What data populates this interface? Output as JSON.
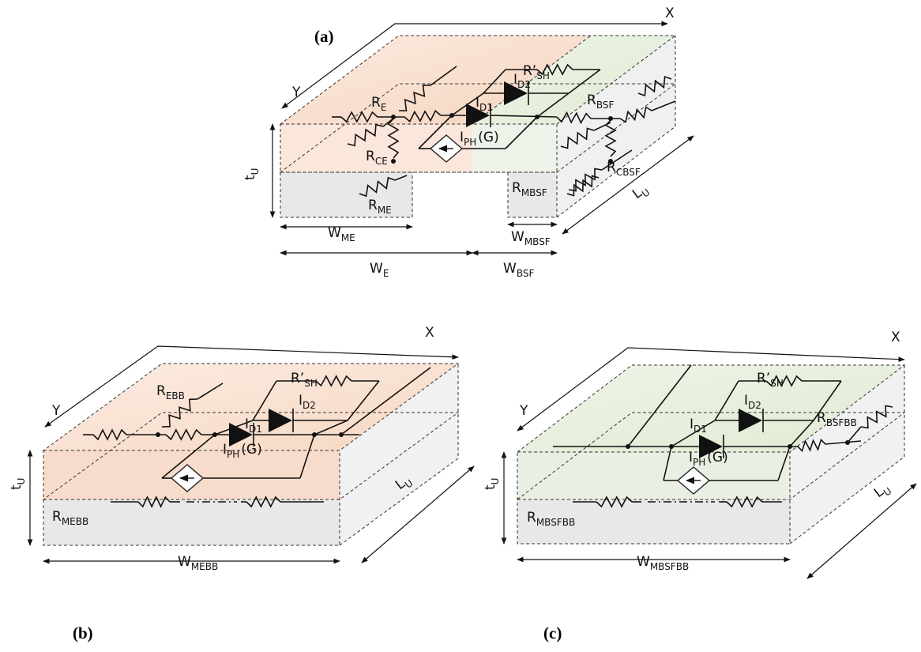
{
  "panels": [
    {
      "tag": "(a)",
      "labels": [
        {
          "text": "X"
        },
        {
          "text": "Y"
        },
        {
          "text": "R",
          "sub": "E"
        },
        {
          "text": "R’",
          "sub": "SH"
        },
        {
          "text": "I",
          "sub": "D2"
        },
        {
          "text": "I",
          "sub": "D1"
        },
        {
          "text": "R",
          "sub": "BSF"
        },
        {
          "text": "I",
          "sub": "PH",
          "suffix": "(G)"
        },
        {
          "text": "R",
          "sub": "CE"
        },
        {
          "text": "R",
          "sub": "CBSF"
        },
        {
          "text": "R",
          "sub": "MBSF"
        },
        {
          "text": "R",
          "sub": "ME"
        },
        {
          "text": "t",
          "sub": "U"
        },
        {
          "text": "L",
          "sub": "U"
        },
        {
          "text": "W",
          "sub": "ME"
        },
        {
          "text": "W",
          "sub": "MBSF"
        },
        {
          "text": "W",
          "sub": "E"
        },
        {
          "text": "W",
          "sub": "BSF"
        }
      ]
    },
    {
      "tag": "(b)",
      "labels": [
        {
          "text": "X"
        },
        {
          "text": "Y"
        },
        {
          "text": "R",
          "sub": "EBB"
        },
        {
          "text": "R’",
          "sub": "SH"
        },
        {
          "text": "I",
          "sub": "D2"
        },
        {
          "text": "I",
          "sub": "D1"
        },
        {
          "text": "I",
          "sub": "PH",
          "suffix": "(G)"
        },
        {
          "text": "t",
          "sub": "U"
        },
        {
          "text": "L",
          "sub": "U"
        },
        {
          "text": "R",
          "sub": "MEBB"
        },
        {
          "text": "W",
          "sub": "MEBB"
        }
      ]
    },
    {
      "tag": "(c)",
      "labels": [
        {
          "text": "X"
        },
        {
          "text": "Y"
        },
        {
          "text": "R’",
          "sub": "SH"
        },
        {
          "text": "I",
          "sub": "D2"
        },
        {
          "text": "I",
          "sub": "D1"
        },
        {
          "text": "R",
          "sub": "BSFBB"
        },
        {
          "text": "I",
          "sub": "PH",
          "suffix": "(G)"
        },
        {
          "text": "t",
          "sub": "U"
        },
        {
          "text": "L",
          "sub": "U"
        },
        {
          "text": "R",
          "sub": "MBSFBB"
        },
        {
          "text": "W",
          "sub": "MBSFBB"
        }
      ]
    }
  ]
}
